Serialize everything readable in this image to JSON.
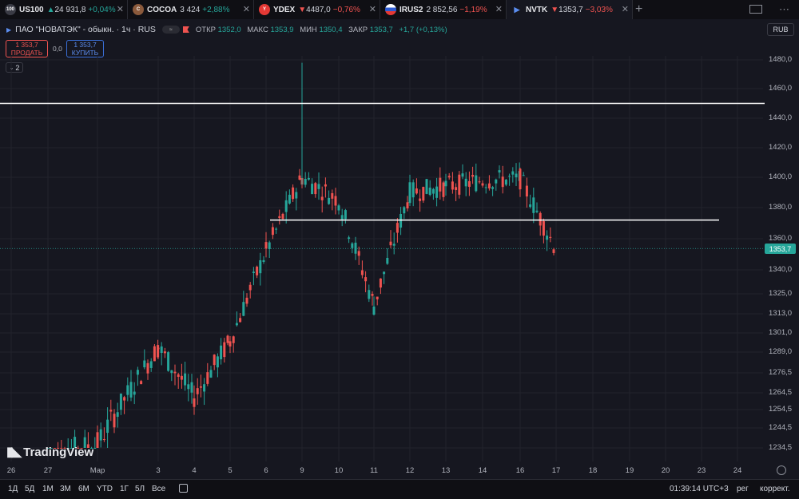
{
  "tabs": [
    {
      "badge": "100",
      "badge_color": "#3a3b45",
      "symbol": "US100",
      "arrow": "▲",
      "price": "24 931,8",
      "change": "+0,04%",
      "dir": "up"
    },
    {
      "badge": "C",
      "badge_color": "#8b5a3c",
      "symbol": "COCOA",
      "arrow": "",
      "price": "3 424",
      "change": "+2,88%",
      "dir": "up"
    },
    {
      "badge": "Y",
      "badge_color": "#e53935",
      "symbol": "YDEX",
      "arrow": "▼",
      "price": "4487,0",
      "change": "−0,76%",
      "dir": "down"
    },
    {
      "badge": "RU",
      "badge_color": "#ffffff",
      "symbol": "IRUS2",
      "arrow": "",
      "price": "2 852,56",
      "change": "−1,19%",
      "dir": "down"
    },
    {
      "badge": "▶",
      "badge_color": "#161720",
      "symbol": "NVTK",
      "arrow": "▼",
      "price": "1353,7",
      "change": "−3,03%",
      "dir": "down"
    }
  ],
  "header": {
    "title": "ПАО \"НОВАТЭК\" - обыкн. · 1ч · RUS",
    "open_label": "ОТКР",
    "open": "1352,0",
    "high_label": "МАКС",
    "high": "1353,9",
    "low_label": "МИН",
    "low": "1350,4",
    "close_label": "ЗАКР",
    "close": "1353,7",
    "change": "+1,7 (+0,13%)",
    "currency": "RUB"
  },
  "trade": {
    "sell_price": "1 353,7",
    "sell_label": "ПРОДАТЬ",
    "spread": "0,0",
    "buy_price": "1 353,7",
    "buy_label": "КУПИТЬ",
    "indicators_count": "2"
  },
  "last_price_label": "1353,7",
  "watermark": "TradingView",
  "chart_data": {
    "type": "line",
    "symbol": "NVTK",
    "interval": "1ч",
    "y_labels": [
      "1480,0",
      "1460,0",
      "1440,0",
      "1420,0",
      "1400,0",
      "1380,0",
      "1360,0",
      "1340,0",
      "1325,0",
      "1313,0",
      "1301,0",
      "1289,0",
      "1276,5",
      "1264,5",
      "1254,5",
      "1244,5",
      "1234,5"
    ],
    "x_labels": [
      "26",
      "27",
      "Мар",
      "3",
      "4",
      "5",
      "6",
      "9",
      "10",
      "11",
      "12",
      "13",
      "14",
      "16",
      "17",
      "18",
      "19",
      "20",
      "23",
      "24"
    ],
    "series": [
      {
        "x": [
          "27",
          "Мар",
          "3",
          "4",
          "5",
          "6",
          "9",
          "10",
          "11",
          "12",
          "13",
          "14",
          "16",
          "17"
        ],
        "values": [
          1230,
          1236,
          1292,
          1262,
          1296,
          1352,
          1400,
          1385,
          1318,
          1390,
          1394,
          1398,
          1399,
          1353
        ]
      }
    ],
    "horizontal_levels": [
      1450,
      1372
    ],
    "last_price": 1353.7,
    "grid": true
  },
  "bottom": {
    "ranges": [
      "1Д",
      "5Д",
      "1М",
      "3М",
      "6М",
      "YTD",
      "1Г",
      "5Л",
      "Все"
    ],
    "time": "01:39:14 UTC+3",
    "session": "рег",
    "adjust": "коррект."
  }
}
